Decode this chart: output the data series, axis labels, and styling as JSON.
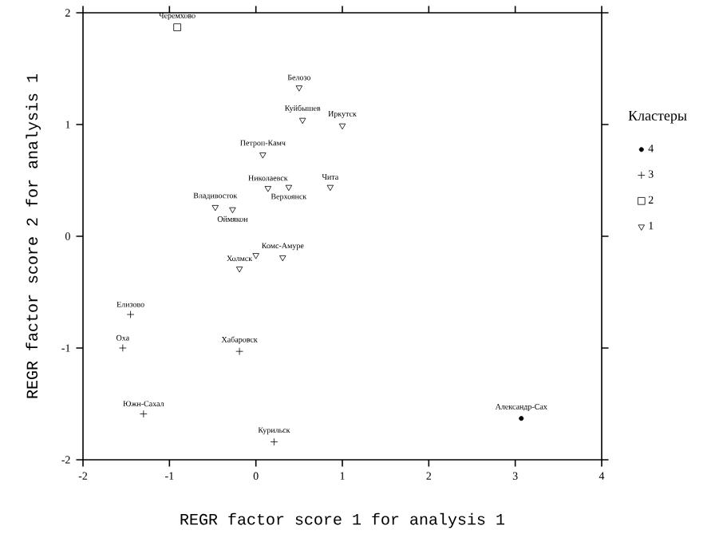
{
  "chart_data": {
    "type": "scatter",
    "xlabel": "REGR factor score   1 for analysis   1",
    "ylabel": "REGR factor score   2 for analysis   1",
    "legend_title": "Кластеры",
    "legend": "right",
    "grid": false,
    "xlim": [
      -2,
      4
    ],
    "xticks": [
      -2,
      -1,
      0,
      1,
      2,
      3,
      4
    ],
    "ylim": [
      -2,
      2
    ],
    "yticks": [
      -2,
      -1,
      0,
      1,
      2
    ],
    "series": [
      {
        "name": "4",
        "color": "#000000",
        "marker": "circle",
        "x": [
          3.07
        ],
        "values": [
          -1.63
        ]
      },
      {
        "name": "3",
        "color": "#000000",
        "marker": "cross",
        "x": [
          -1.45,
          -1.54,
          -0.19,
          -1.3,
          0.21
        ],
        "values": [
          -0.7,
          -1.0,
          -1.03,
          -1.59,
          -1.84
        ]
      },
      {
        "name": "2",
        "color": "#000000",
        "marker": "square",
        "x": [
          -0.91
        ],
        "values": [
          1.87
        ]
      },
      {
        "name": "1",
        "color": "#000000",
        "marker": "triangle",
        "x": [
          0.5,
          0.54,
          1.0,
          0.08,
          0.14,
          0.38,
          0.86,
          -0.47,
          -0.27,
          0.0,
          0.31,
          -0.19
        ],
        "values": [
          1.33,
          1.04,
          0.99,
          0.73,
          0.43,
          0.44,
          0.44,
          0.26,
          0.24,
          -0.17,
          -0.19,
          -0.29
        ]
      }
    ],
    "annotations": [
      {
        "text": "Александр-Сах",
        "x": 3.07,
        "y": -1.63
      },
      {
        "text": "Елизово",
        "x": -1.45,
        "y": -0.7
      },
      {
        "text": "Оха",
        "x": -1.54,
        "y": -1.0
      },
      {
        "text": "Хабаровск",
        "x": -0.19,
        "y": -1.03
      },
      {
        "text": "Южн-Сахал",
        "x": -1.3,
        "y": -1.59
      },
      {
        "text": "Курильск",
        "x": 0.21,
        "y": -1.84
      },
      {
        "text": "Черемхово",
        "x": -0.91,
        "y": 1.87
      },
      {
        "text": "Белозо",
        "x": 0.5,
        "y": 1.33
      },
      {
        "text": "Куйбышев",
        "x": 0.54,
        "y": 1.04
      },
      {
        "text": "Иркутск",
        "x": 1.0,
        "y": 0.99
      },
      {
        "text": "Петроп-Камч",
        "x": 0.08,
        "y": 0.73
      },
      {
        "text": "Николаевск",
        "x": 0.14,
        "y": 0.43
      },
      {
        "text": "Верхоянск",
        "x": 0.38,
        "y": 0.44
      },
      {
        "text": "Чита",
        "x": 0.86,
        "y": 0.44
      },
      {
        "text": "Владивосток",
        "x": -0.47,
        "y": 0.26
      },
      {
        "text": "Оймякон",
        "x": -0.27,
        "y": 0.24
      },
      {
        "text": "Комс-Амуре",
        "x": 0.31,
        "y": -0.19
      },
      {
        "text": "Холмск",
        "x": -0.19,
        "y": -0.29
      }
    ]
  }
}
